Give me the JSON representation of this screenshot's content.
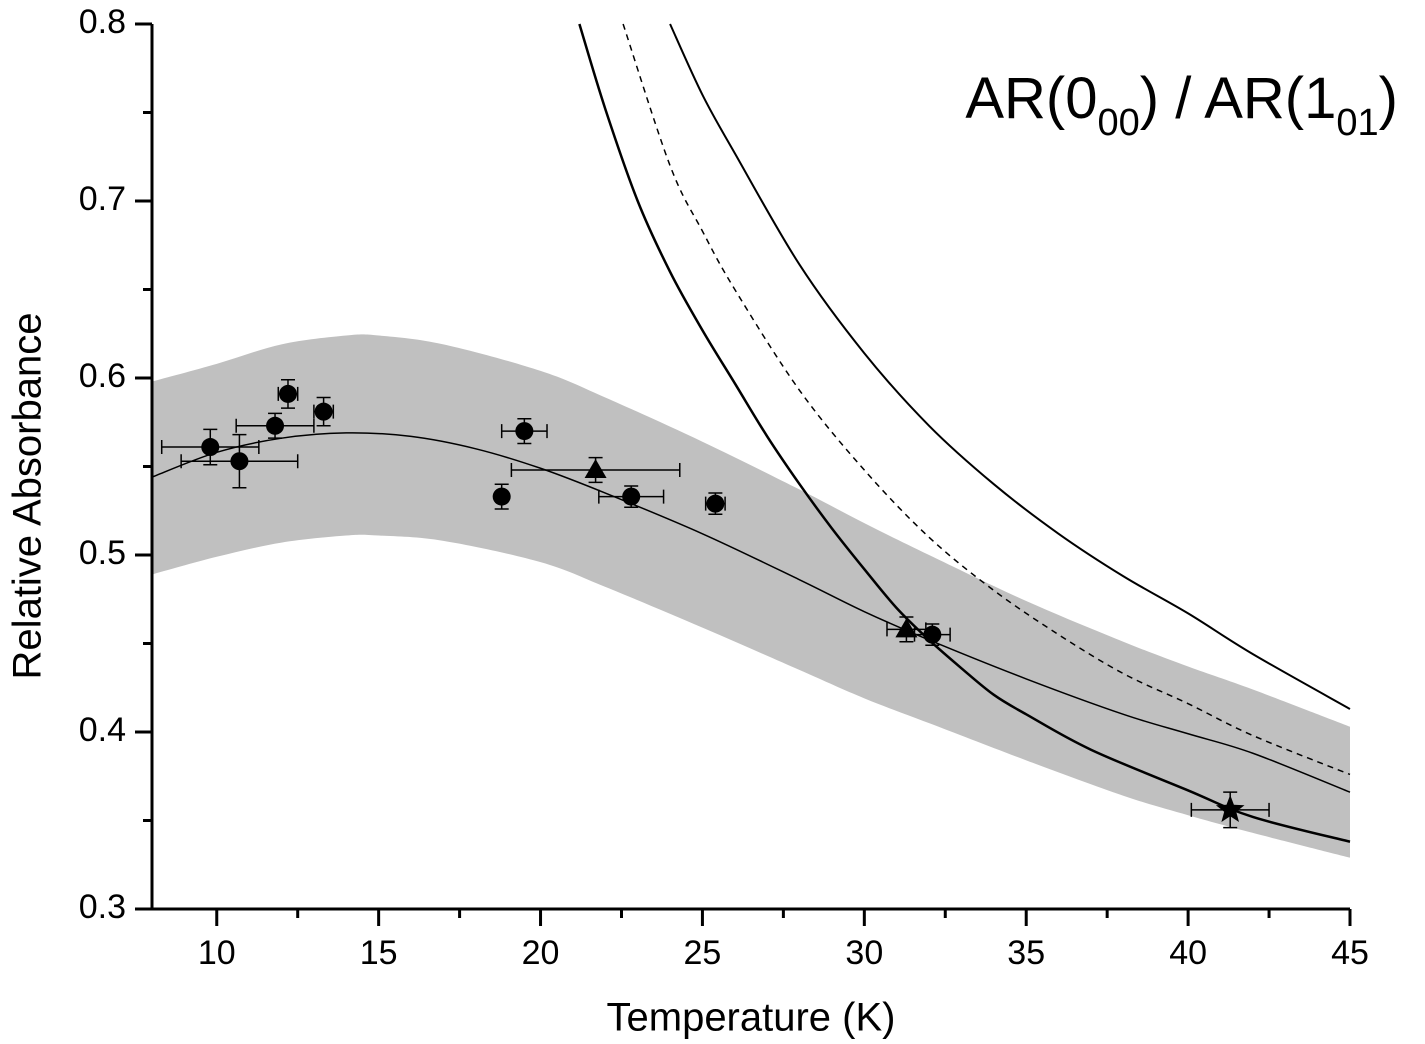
{
  "chart_data": {
    "type": "scatter",
    "x_label": "Temperature (K)",
    "y_label": "Relative Absorbance",
    "annotation": [
      "AR(0",
      "00",
      ") / AR(1",
      "01",
      ")"
    ],
    "xlim": [
      8,
      45
    ],
    "ylim": [
      0.3,
      0.8
    ],
    "xticks": [
      10,
      15,
      20,
      25,
      30,
      35,
      40,
      45
    ],
    "xticks_minor": [
      12.5,
      17.5,
      22.5,
      27.5,
      32.5,
      37.5,
      42.5
    ],
    "yticks": [
      0.3,
      0.4,
      0.5,
      0.6,
      0.7,
      0.8
    ],
    "yticks_minor": [
      0.35,
      0.45,
      0.55,
      0.65,
      0.75
    ],
    "band": {
      "color": "#c0c0c0",
      "x": [
        8,
        10,
        12,
        14,
        15,
        17,
        20,
        22,
        25,
        28,
        30,
        32,
        35,
        38,
        40,
        42,
        45
      ],
      "upper": [
        0.598,
        0.608,
        0.619,
        0.624,
        0.624,
        0.619,
        0.604,
        0.589,
        0.564,
        0.537,
        0.518,
        0.5,
        0.474,
        0.451,
        0.437,
        0.424,
        0.403
      ],
      "lower": [
        0.489,
        0.499,
        0.507,
        0.511,
        0.511,
        0.508,
        0.496,
        0.482,
        0.459,
        0.435,
        0.419,
        0.405,
        0.384,
        0.364,
        0.353,
        0.343,
        0.329
      ]
    },
    "curves": [
      {
        "color": "#000000",
        "width": 1.5,
        "dash": false,
        "x": [
          8,
          10,
          12,
          14,
          16,
          18,
          20,
          22,
          25,
          28,
          30,
          32,
          35,
          38,
          40,
          42,
          45
        ],
        "y": [
          0.544,
          0.558,
          0.566,
          0.569,
          0.567,
          0.56,
          0.549,
          0.535,
          0.512,
          0.486,
          0.468,
          0.452,
          0.43,
          0.41,
          0.399,
          0.388,
          0.366
        ]
      },
      {
        "color": "#000000",
        "width": 2.5,
        "dash": false,
        "x": [
          21.2,
          22,
          23,
          24,
          25,
          26,
          27,
          28,
          29,
          30,
          31,
          32,
          33,
          34,
          35,
          37,
          40,
          42,
          45
        ],
        "y": [
          0.8,
          0.752,
          0.7,
          0.66,
          0.627,
          0.597,
          0.567,
          0.54,
          0.515,
          0.492,
          0.47,
          0.452,
          0.436,
          0.421,
          0.41,
          0.39,
          0.367,
          0.352,
          0.338
        ]
      },
      {
        "color": "#000000",
        "width": 1.5,
        "dash": true,
        "x": [
          22.55,
          24,
          25,
          26,
          28,
          30,
          32,
          34,
          36,
          38,
          40,
          42,
          45
        ],
        "y": [
          0.8,
          0.72,
          0.683,
          0.65,
          0.593,
          0.548,
          0.51,
          0.48,
          0.455,
          0.433,
          0.416,
          0.398,
          0.376
        ]
      },
      {
        "color": "#000000",
        "width": 2,
        "dash": false,
        "x": [
          24,
          25,
          26,
          28,
          30,
          32,
          34,
          36,
          38,
          40,
          42,
          45
        ],
        "y": [
          0.8,
          0.76,
          0.727,
          0.664,
          0.614,
          0.573,
          0.54,
          0.512,
          0.488,
          0.467,
          0.444,
          0.413
        ]
      }
    ],
    "series": [
      {
        "marker": "circle",
        "color": "#000000",
        "x": [
          9.8,
          10.7,
          11.8,
          12.2,
          13.3,
          18.8,
          19.5,
          22.8,
          25.4,
          32.1
        ],
        "y": [
          0.561,
          0.553,
          0.573,
          0.591,
          0.581,
          0.533,
          0.57,
          0.533,
          0.529,
          0.455
        ],
        "xerr": [
          1.5,
          1.8,
          1.2,
          0.3,
          0.3,
          0,
          0.7,
          1.0,
          0.3,
          0.55
        ],
        "yerr": [
          0.01,
          0.015,
          0.007,
          0.008,
          0.008,
          0.007,
          0.007,
          0.006,
          0.006,
          0.006
        ]
      },
      {
        "marker": "triangle",
        "color": "#000000",
        "x": [
          21.7,
          31.3
        ],
        "y": [
          0.548,
          0.458
        ],
        "xerr": [
          2.6,
          0.6
        ],
        "yerr": [
          0.007,
          0.007
        ]
      },
      {
        "marker": "star",
        "color": "#000000",
        "x": [
          41.3
        ],
        "y": [
          0.356
        ],
        "xerr": [
          1.2
        ],
        "yerr": [
          0.01
        ]
      }
    ]
  }
}
